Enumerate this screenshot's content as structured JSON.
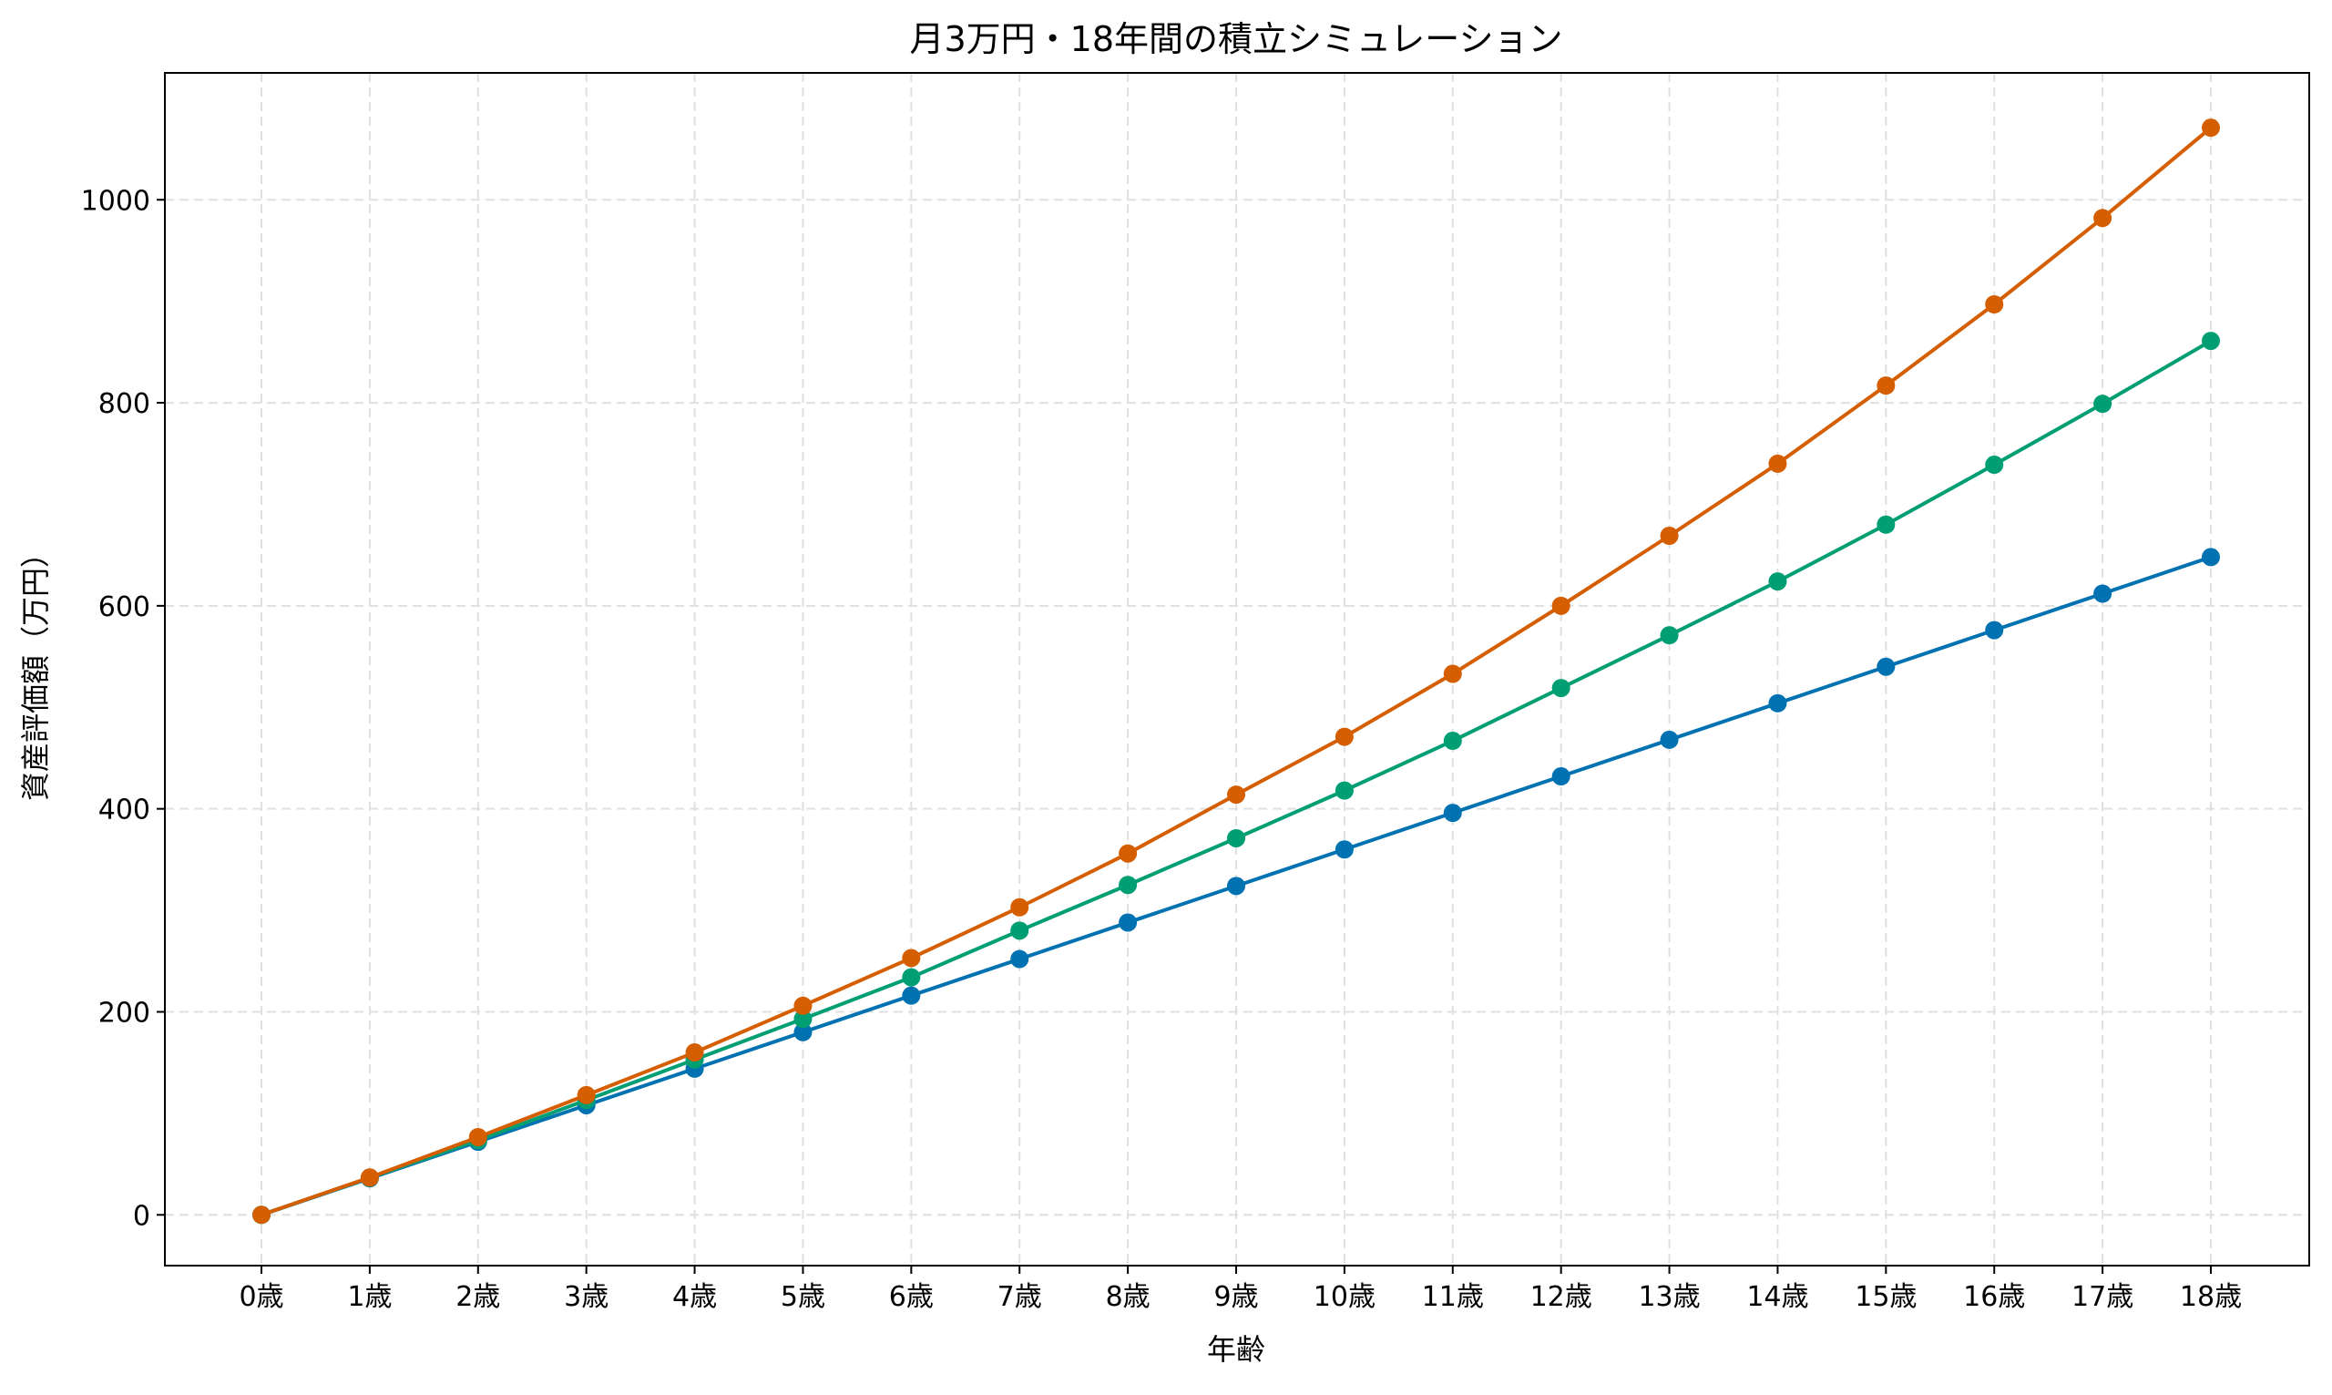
{
  "chart_data": {
    "type": "line",
    "title": "月3万円・18年間の積立シミュレーション",
    "xlabel": "年齢",
    "ylabel": "資産評価額（万円）",
    "categories": [
      "0歳",
      "1歳",
      "2歳",
      "3歳",
      "4歳",
      "5歳",
      "6歳",
      "7歳",
      "8歳",
      "9歳",
      "10歳",
      "11歳",
      "12歳",
      "13歳",
      "14歳",
      "15歳",
      "16歳",
      "17歳",
      "18歳"
    ],
    "ylim": [
      -50,
      1125
    ],
    "yticks": [
      0,
      200,
      400,
      600,
      800,
      1000
    ],
    "grid": true,
    "marker": "circle",
    "series": [
      {
        "color": "#0072B2",
        "values": [
          0,
          36,
          72,
          108,
          144,
          180,
          216,
          252,
          288,
          324,
          360,
          396,
          432,
          468,
          504,
          540,
          576,
          612,
          648
        ]
      },
      {
        "color": "#009E73",
        "values": [
          0,
          36.6,
          73.6,
          113,
          153,
          193,
          234,
          280,
          325,
          371,
          418,
          467,
          519,
          571,
          624,
          680,
          739,
          799,
          861
        ]
      },
      {
        "color": "#D55E00",
        "values": [
          0,
          36.8,
          76.6,
          118,
          160,
          206,
          253,
          303,
          356,
          414,
          471,
          533,
          600,
          669,
          740,
          817,
          897,
          982,
          1071
        ]
      }
    ]
  }
}
